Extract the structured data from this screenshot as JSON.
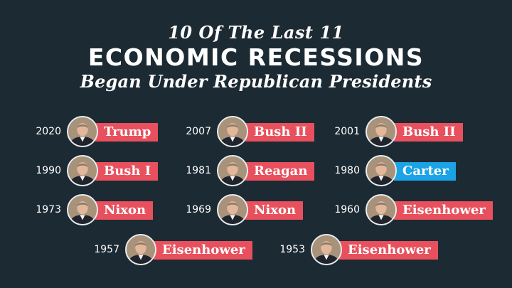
{
  "title": {
    "line1": "10 Of The Last 11",
    "line2": "ECONOMIC RECESSIONS",
    "line3": "Began Under Republican Presidents"
  },
  "colors": {
    "background": "#1c2a33",
    "republican": "#e8505d",
    "democrat": "#1aa3e6"
  },
  "entries": [
    {
      "year": "2020",
      "name": "Trump",
      "party": "republican"
    },
    {
      "year": "2007",
      "name": "Bush II",
      "party": "republican"
    },
    {
      "year": "2001",
      "name": "Bush II",
      "party": "republican"
    },
    {
      "year": "1990",
      "name": "Bush I",
      "party": "republican"
    },
    {
      "year": "1981",
      "name": "Reagan",
      "party": "republican"
    },
    {
      "year": "1980",
      "name": "Carter",
      "party": "democrat"
    },
    {
      "year": "1973",
      "name": "Nixon",
      "party": "republican"
    },
    {
      "year": "1969",
      "name": "Nixon",
      "party": "republican"
    },
    {
      "year": "1960",
      "name": "Eisenhower",
      "party": "republican"
    },
    {
      "year": "1957",
      "name": "Eisenhower",
      "party": "republican"
    },
    {
      "year": "1953",
      "name": "Eisenhower",
      "party": "republican"
    }
  ]
}
